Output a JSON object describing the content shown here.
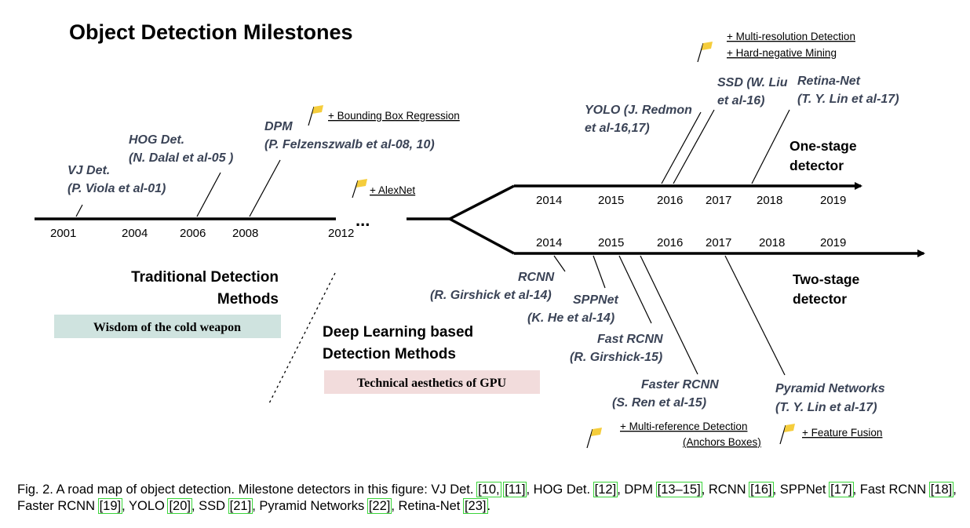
{
  "title": "Object Detection Milestones",
  "timeline": {
    "traditional_years": [
      "2001",
      "2004",
      "2006",
      "2008",
      "2012"
    ],
    "ellipsis": "...",
    "one_stage_years": [
      "2014",
      "2015",
      "2016",
      "2017",
      "2018",
      "2019"
    ],
    "two_stage_years": [
      "2014",
      "2015",
      "2016",
      "2017",
      "2018",
      "2019"
    ]
  },
  "detectors": {
    "vj": [
      "VJ Det.",
      "(P. Viola et al-01)"
    ],
    "hog": [
      "HOG Det.",
      "(N. Dalal et al-05 )"
    ],
    "dpm": [
      "DPM",
      "(P. Felzenszwalb et al-08, 10)"
    ],
    "yolo": [
      "YOLO (J. Redmon",
      "et al-16,17)"
    ],
    "ssd": [
      "SSD (W. Liu",
      "et al-16)"
    ],
    "retina": [
      "Retina-Net",
      "(T. Y. Lin et al-17)"
    ],
    "rcnn": [
      "RCNN",
      "(R. Girshick et al-14)"
    ],
    "sppnet": [
      "SPPNet",
      "(K. He et al-14)"
    ],
    "fast_rcnn": [
      "Fast RCNN",
      "(R. Girshick-15)"
    ],
    "faster_rcnn": [
      "Faster RCNN",
      "(S. Ren et al-15)"
    ],
    "fpn": [
      "Pyramid Networks",
      "(T. Y. Lin et al-17)"
    ]
  },
  "branches": {
    "one_stage": [
      "One-stage",
      "detector"
    ],
    "two_stage": [
      "Two-stage",
      "detector"
    ]
  },
  "sections": {
    "traditional": [
      "Traditional Detection",
      "Methods"
    ],
    "traditional_tag": "Wisdom of the cold weapon",
    "deep": [
      "Deep Learning based",
      "Detection Methods"
    ],
    "deep_tag": "Technical aesthetics of GPU"
  },
  "notes": {
    "bbox_regression": "+ Bounding Box Regression",
    "alexnet": "+ AlexNet",
    "multi_res": "+ Multi-resolution Detection",
    "hard_neg": "+ Hard-negative Mining",
    "multi_ref": "+ Multi-reference Detection",
    "anchors": "(Anchors Boxes)",
    "feature_fusion": "+ Feature Fusion"
  },
  "colors": {
    "flag": "#f5cd3c",
    "traditional_tag_bg": "#cfe3df",
    "deep_tag_bg": "#f2dcdc",
    "detector_text": "#3a4356",
    "cite_box": "#39d439"
  },
  "caption": {
    "prefix": "Fig. 2.  A road map of object detection. Milestone detectors in this figure: VJ Det. ",
    "c1": "[10,",
    "c2": "[11]",
    "t1": ", HOG Det. ",
    "c3": "[12]",
    "t2": ", DPM ",
    "c4": "[13–15]",
    "t3": ", RCNN ",
    "c5": "[16]",
    "t4": ", SPPNet ",
    "c6": "[17]",
    "t5": ", Fast RCNN ",
    "c7": "[18]",
    "t6": ", Faster RCNN ",
    "c8": "[19]",
    "t7": ", YOLO ",
    "c9": "[20]",
    "t8": ", SSD ",
    "c10": "[21]",
    "t9": ", Pyramid Networks ",
    "c11": "[22]",
    "t10": ", Retina-Net ",
    "c12": "[23]",
    "t11": "."
  }
}
